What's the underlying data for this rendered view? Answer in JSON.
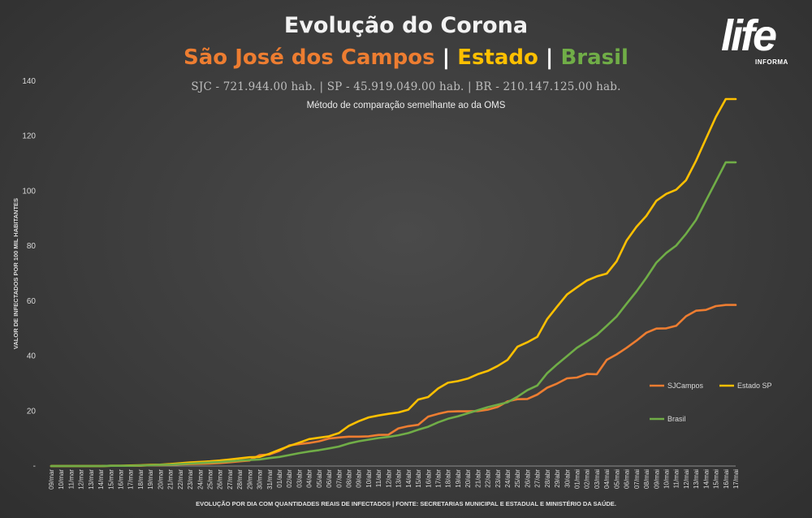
{
  "header": {
    "title": "Evolução do Corona",
    "subtitle_sjc": "São José dos Campos",
    "subtitle_sep1": " | ",
    "subtitle_estado": "Estado",
    "subtitle_sep2": " | ",
    "subtitle_brasil": "Brasil",
    "population": "SJC - 721.944.00 hab. | SP - 45.919.049.00 hab. | BR - 210.147.125.00 hab.",
    "method_note": "Método de comparação semelhante ao da OMS"
  },
  "logo": {
    "main": "life",
    "sub": "INFORMA"
  },
  "footer": "EVOLUÇÃO POR DIA COM QUANTIDADES REAIS DE INFECTADOS | FONTE: SECRETARIAS MUNICIPAL E ESTADUAL E MINISTÉRIO DA SAÚDE.",
  "colors": {
    "sjc": "#ed7d31",
    "estado": "#ffc000",
    "brasil": "#70ad47",
    "text": "#d9d9d9"
  },
  "chart_data": {
    "type": "line",
    "ylabel": "VALOR DE INFECTADOS POR 100 MIL HABITANTES",
    "ylim": [
      0,
      140
    ],
    "yticks": [
      0,
      20,
      40,
      60,
      80,
      100,
      120,
      140
    ],
    "ytick_labels": [
      "-",
      "20",
      "40",
      "60",
      "80",
      "100",
      "120",
      "140"
    ],
    "grid": false,
    "legend_position": "bottom-right",
    "categories": [
      "09/mar",
      "10/mar",
      "11/mar",
      "12/mar",
      "13/mar",
      "14/mar",
      "15/mar",
      "16/mar",
      "17/mar",
      "18/mar",
      "19/mar",
      "20/mar",
      "21/mar",
      "22/mar",
      "23/mar",
      "24/mar",
      "25/mar",
      "26/mar",
      "27/mar",
      "28/mar",
      "29/mar",
      "30/mar",
      "31/mar",
      "01/abr",
      "02/abr",
      "03/abr",
      "04/abr",
      "05/abr",
      "06/abr",
      "07/abr",
      "08/abr",
      "09/abr",
      "10/abr",
      "11/abr",
      "12/abr",
      "13/abr",
      "14/abr",
      "15/abr",
      "16/abr",
      "17/abr",
      "18/abr",
      "19/abr",
      "20/abr",
      "21/abr",
      "22/abr",
      "23/abr",
      "24/abr",
      "25/abr",
      "26/abr",
      "27/abr",
      "28/abr",
      "29/abr",
      "30/abr",
      "01/mai",
      "02/mai",
      "03/mai",
      "04/mai",
      "05/mai",
      "06/mai",
      "07/mai",
      "08/mai",
      "09/mai",
      "10/mai",
      "11/mai",
      "12/mai",
      "13/mai",
      "14/mai",
      "15/mai",
      "16/mai",
      "17/mai"
    ],
    "series": [
      {
        "name": "SJCampos",
        "values": [
          0,
          0,
          0,
          0,
          0,
          0,
          0.1,
          0.1,
          0.1,
          0.1,
          0.3,
          0.3,
          0.4,
          0.6,
          0.7,
          0.8,
          0.9,
          1.1,
          1.4,
          1.7,
          2.0,
          4.0,
          4.2,
          5.5,
          7.5,
          8.0,
          8.4,
          9.0,
          10.0,
          10.4,
          10.7,
          10.7,
          10.8,
          11.3,
          11.4,
          13.7,
          14.5,
          15.0,
          18.0,
          19.0,
          19.8,
          19.9,
          19.9,
          20.0,
          20.5,
          21.5,
          23.5,
          24.3,
          24.4,
          26.0,
          28.5,
          30.0,
          31.9,
          32.2,
          33.5,
          33.4,
          38.6,
          40.6,
          43.0,
          45.6,
          48.5,
          50.0,
          50.1,
          51.0,
          54.5,
          56.5,
          56.8,
          58.2,
          58.6,
          58.6
        ]
      },
      {
        "name": "Estado SP",
        "values": [
          0,
          0,
          0,
          0,
          0,
          0,
          0.1,
          0.1,
          0.2,
          0.3,
          0.4,
          0.5,
          0.7,
          1.0,
          1.3,
          1.5,
          1.7,
          2.0,
          2.4,
          2.8,
          3.2,
          3.3,
          4.5,
          5.9,
          7.3,
          8.5,
          9.8,
          10.3,
          10.8,
          12.0,
          14.6,
          16.3,
          17.7,
          18.4,
          19.0,
          19.5,
          20.5,
          24.2,
          25.1,
          28.2,
          30.3,
          30.9,
          31.8,
          33.4,
          34.6,
          36.4,
          38.6,
          43.4,
          45.0,
          47.0,
          53.5,
          58.0,
          62.4,
          65.0,
          67.5,
          69.0,
          70.0,
          74.5,
          82.0,
          87.0,
          91.0,
          96.5,
          99.0,
          100.5,
          104.0,
          111.0,
          119.0,
          127.0,
          133.5,
          133.5
        ]
      },
      {
        "name": "Brasil",
        "values": [
          0,
          0,
          0,
          0,
          0,
          0,
          0.1,
          0.1,
          0.1,
          0.2,
          0.3,
          0.4,
          0.5,
          0.7,
          0.9,
          1.1,
          1.3,
          1.5,
          1.7,
          2.0,
          2.2,
          2.4,
          2.9,
          3.3,
          4.0,
          4.7,
          5.3,
          5.8,
          6.4,
          7.1,
          8.2,
          9.0,
          9.6,
          10.2,
          10.6,
          11.2,
          12.0,
          13.2,
          14.3,
          15.9,
          17.2,
          18.1,
          19.2,
          20.3,
          21.4,
          22.3,
          23.2,
          25.2,
          27.6,
          29.3,
          33.8,
          37.0,
          40.0,
          43.0,
          45.3,
          47.7,
          51.0,
          54.4,
          59.0,
          63.5,
          68.5,
          74.0,
          77.5,
          80.2,
          84.5,
          89.5,
          96.5,
          103.5,
          110.5,
          110.5
        ]
      }
    ]
  }
}
